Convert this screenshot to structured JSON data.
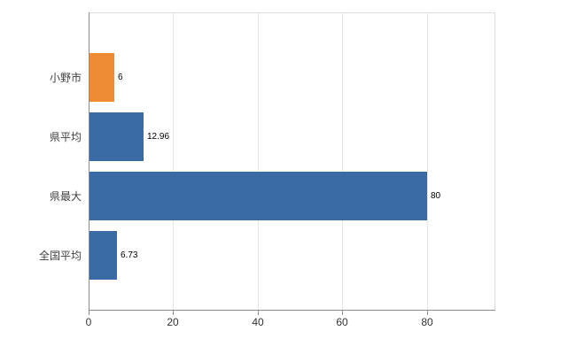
{
  "chart_data": {
    "type": "bar",
    "orientation": "horizontal",
    "title": "",
    "xlabel": "",
    "ylabel": "",
    "categories": [
      "小野市",
      "県平均",
      "県最大",
      "全国平均"
    ],
    "values": [
      6,
      12.96,
      80,
      6.73
    ],
    "value_labels": [
      "6",
      "12.96",
      "80",
      "6.73"
    ],
    "bar_colors": [
      "#ef8b33",
      "#3b6ba5",
      "#3b6ba5",
      "#3b6ba5"
    ],
    "xlim": [
      0,
      96
    ],
    "x_ticks": [
      0,
      20,
      40,
      60,
      80
    ],
    "grid": "vertical",
    "legend": "none",
    "colors": {
      "gridline": "#e7e7e7",
      "axis": "#8c8c8c",
      "frame": "#dcdcdc",
      "tick_label": "#333333",
      "category_label": "#404040",
      "value_label": "#000000",
      "background": "#ffffff"
    }
  }
}
